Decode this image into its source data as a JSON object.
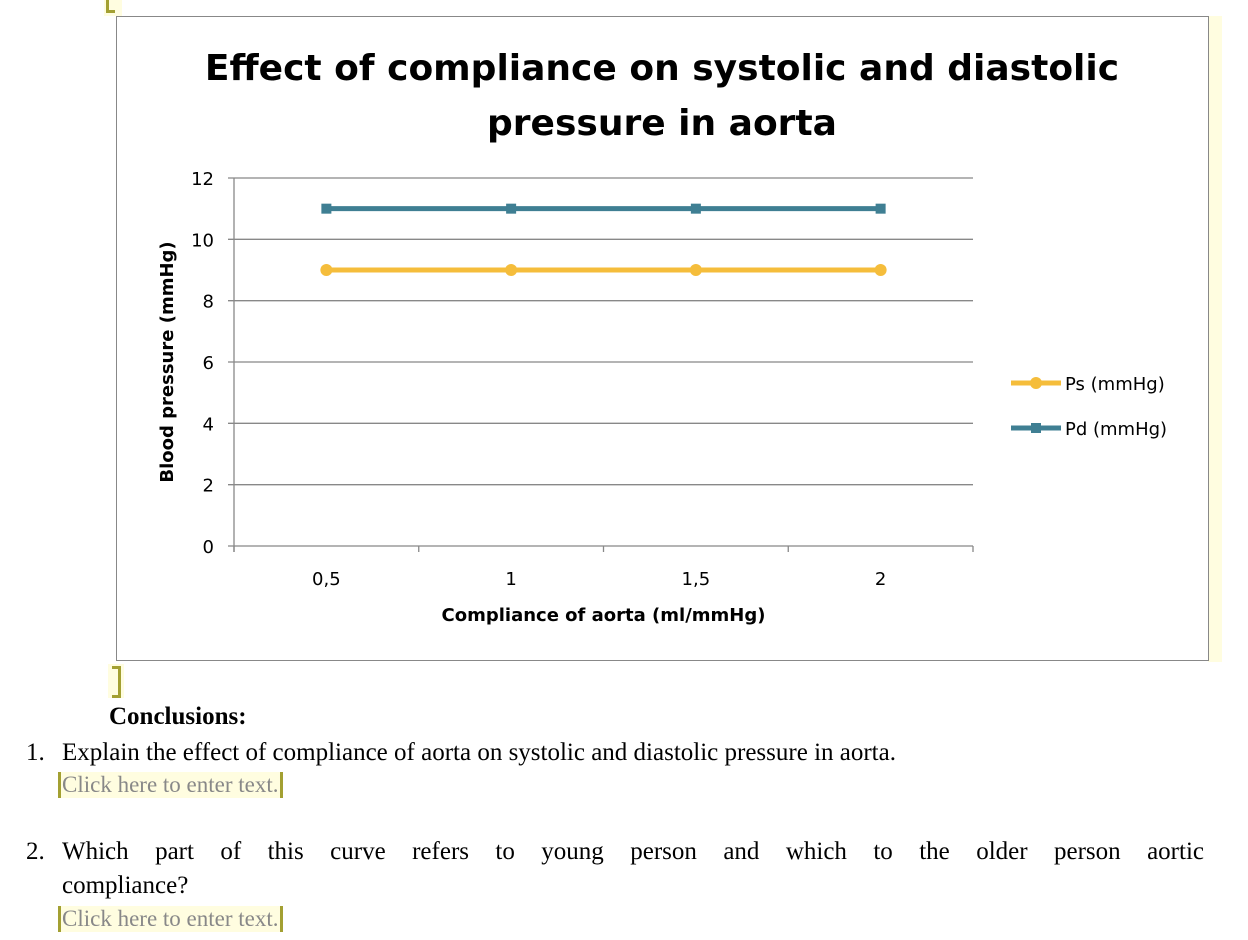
{
  "chart_data": {
    "type": "line",
    "title": "Effect of compliance on systolic and diastolic pressure in aorta",
    "title_lines": [
      "Effect of compliance on systolic and diastolic",
      "pressure in aorta"
    ],
    "xlabel": "Compliance of aorta (ml/mmHg)",
    "ylabel": "Blood pressure (mmHg)",
    "categories": [
      "0,5",
      "1",
      "1,5",
      "2"
    ],
    "ylim": [
      0,
      12
    ],
    "yticks": [
      "0",
      "2",
      "4",
      "6",
      "8",
      "10",
      "12"
    ],
    "grid": true,
    "legend_position": "right",
    "series": [
      {
        "name": "Ps (mmHg)",
        "values": [
          9,
          9,
          9,
          9
        ],
        "color": "#f5bd3b",
        "marker": "circle"
      },
      {
        "name": "Pd (mmHg)",
        "values": [
          11,
          11,
          11,
          11
        ],
        "color": "#3f7f93",
        "marker": "square"
      }
    ]
  },
  "conclusions": {
    "heading": "Conclusions:",
    "q1_number": "1.",
    "q1": "Explain the effect of compliance of aorta on systolic and diastolic pressure in aorta.",
    "q1_placeholder": "Click here to enter text.",
    "q2_number": "2.",
    "q2_line1": "Which part of this curve refers to young person and which to the older person aortic",
    "q2_line2": "compliance?",
    "q2_placeholder": "Click here to enter text."
  }
}
